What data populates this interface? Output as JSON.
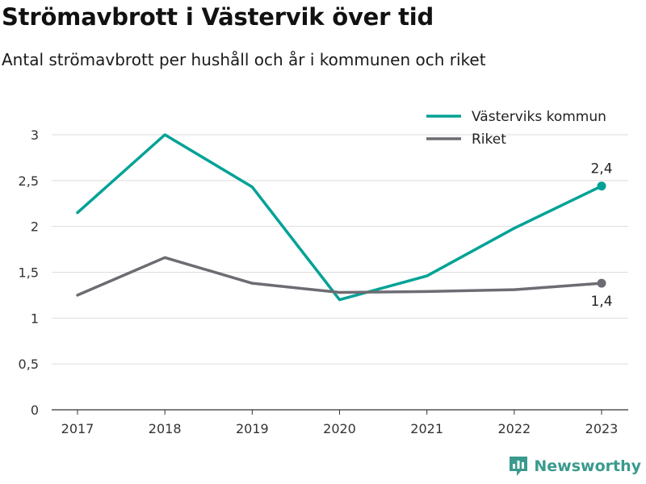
{
  "header": {
    "title": "Strömavbrott i Västervik över tid",
    "subtitle": "Antal strömavbrott per hushåll och år i kommunen och riket"
  },
  "brand": {
    "name": "Newsworthy",
    "icon": "newsworthy-logo-icon",
    "color": "#3a9a8e"
  },
  "chart_data": {
    "type": "line",
    "title": "Strömavbrott i Västervik över tid",
    "subtitle": "Antal strömavbrott per hushåll och år i kommunen och riket",
    "xlabel": "",
    "ylabel": "",
    "x": [
      "2017",
      "2018",
      "2019",
      "2020",
      "2021",
      "2022",
      "2023"
    ],
    "ylim": [
      0,
      3
    ],
    "yticks": [
      0,
      0.5,
      1,
      1.5,
      2,
      2.5,
      3
    ],
    "ytick_labels": [
      "0",
      "0,5",
      "1",
      "1,5",
      "2",
      "2,5",
      "3"
    ],
    "grid": true,
    "legend_position": "top-right",
    "series": [
      {
        "name": "Västerviks kommun",
        "color": "#00a296",
        "values": [
          2.15,
          3.0,
          2.43,
          1.2,
          1.46,
          1.98,
          2.44
        ],
        "end_label": "2,4"
      },
      {
        "name": "Riket",
        "color": "#6d6c73",
        "values": [
          1.25,
          1.66,
          1.38,
          1.28,
          1.29,
          1.31,
          1.38
        ],
        "end_label": "1,4"
      }
    ]
  }
}
